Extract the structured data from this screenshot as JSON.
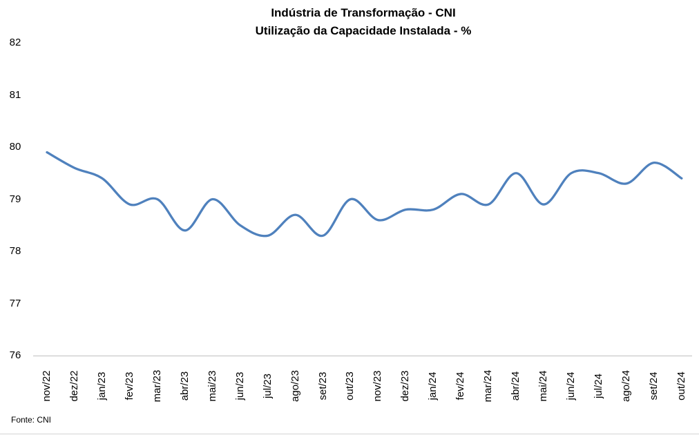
{
  "chart_data": {
    "type": "line",
    "title": "Indústria de Transformação - CNI",
    "subtitle": "Utilização da Capacidade Instalada - %",
    "categories": [
      "nov/22",
      "dez/22",
      "jan/23",
      "fev/23",
      "mar/23",
      "abr/23",
      "mai/23",
      "jun/23",
      "jul/23",
      "ago/23",
      "set/23",
      "out/23",
      "nov/23",
      "dez/23",
      "jan/24",
      "fev/24",
      "mar/24",
      "abr/24",
      "mai/24",
      "jun/24",
      "jul/24",
      "ago/24",
      "set/24",
      "out/24"
    ],
    "values": [
      79.9,
      79.6,
      79.4,
      78.9,
      79.0,
      78.4,
      79.0,
      78.5,
      78.3,
      78.7,
      78.3,
      79.0,
      78.6,
      78.8,
      78.8,
      79.1,
      78.9,
      79.5,
      78.9,
      79.5,
      79.5,
      79.3,
      79.7,
      79.4
    ],
    "yticks": [
      76,
      77,
      78,
      79,
      80,
      81,
      82
    ],
    "ylim": [
      76,
      82
    ],
    "xlabel": "",
    "ylabel": "",
    "grid": false,
    "legend": "none",
    "smooth": true,
    "line_color": "#4F81BD",
    "axis_color": "#BFBFBF",
    "source": "Fonte: CNI"
  }
}
